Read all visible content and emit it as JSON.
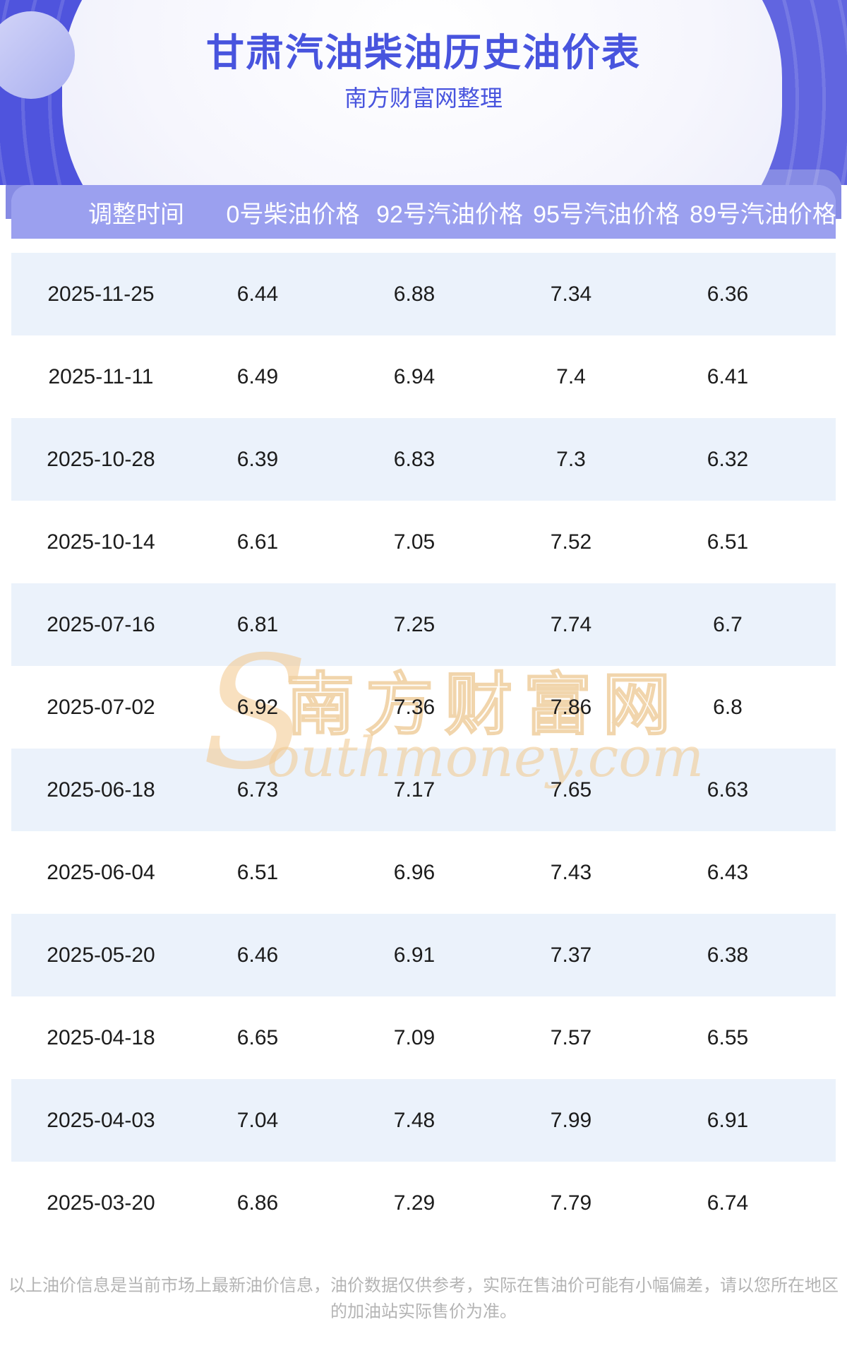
{
  "header": {
    "title": "甘肃汽油柴油历史油价表",
    "subtitle": "南方财富网整理"
  },
  "table": {
    "columns": [
      "调整时间",
      "0号柴油价格",
      "92号汽油价格",
      "95号汽油价格",
      "89号汽油价格"
    ]
  },
  "chart_data": {
    "type": "table",
    "title": "甘肃汽油柴油历史油价表",
    "subtitle": "南方财富网整理",
    "columns": [
      "调整时间",
      "0号柴油价格",
      "92号汽油价格",
      "95号汽油价格",
      "89号汽油价格"
    ],
    "rows": [
      [
        "2025-11-25",
        "6.44",
        "6.88",
        "7.34",
        "6.36"
      ],
      [
        "2025-11-11",
        "6.49",
        "6.94",
        "7.4",
        "6.41"
      ],
      [
        "2025-10-28",
        "6.39",
        "6.83",
        "7.3",
        "6.32"
      ],
      [
        "2025-10-14",
        "6.61",
        "7.05",
        "7.52",
        "6.51"
      ],
      [
        "2025-07-16",
        "6.81",
        "7.25",
        "7.74",
        "6.7"
      ],
      [
        "2025-07-02",
        "6.92",
        "7.36",
        "7.86",
        "6.8"
      ],
      [
        "2025-06-18",
        "6.73",
        "7.17",
        "7.65",
        "6.63"
      ],
      [
        "2025-06-04",
        "6.51",
        "6.96",
        "7.43",
        "6.43"
      ],
      [
        "2025-05-20",
        "6.46",
        "6.91",
        "7.37",
        "6.38"
      ],
      [
        "2025-04-18",
        "6.65",
        "7.09",
        "7.57",
        "6.55"
      ],
      [
        "2025-04-03",
        "7.04",
        "7.48",
        "7.99",
        "6.91"
      ],
      [
        "2025-03-20",
        "6.86",
        "7.29",
        "7.79",
        "6.74"
      ]
    ]
  },
  "watermark": {
    "s": "S",
    "cn": "南方财富网",
    "en": "outhmoney.com"
  },
  "footer": {
    "disclaimer": "以上油价信息是当前市场上最新油价信息，油价数据仅供参考，实际在售油价可能有小幅偏差，请以您所在地区的加油站实际售价为准。"
  },
  "colors": {
    "accent_text": "#4854DE",
    "hero_background": "#6165E0",
    "accent_band": "#868BE4",
    "table_header_bar": "#9BA0EF",
    "row_alternate": "#EBF2FB",
    "row_text": "#1C1C1C",
    "footer_text": "#B4B4B4",
    "watermark_tan": "#F2C98E"
  }
}
